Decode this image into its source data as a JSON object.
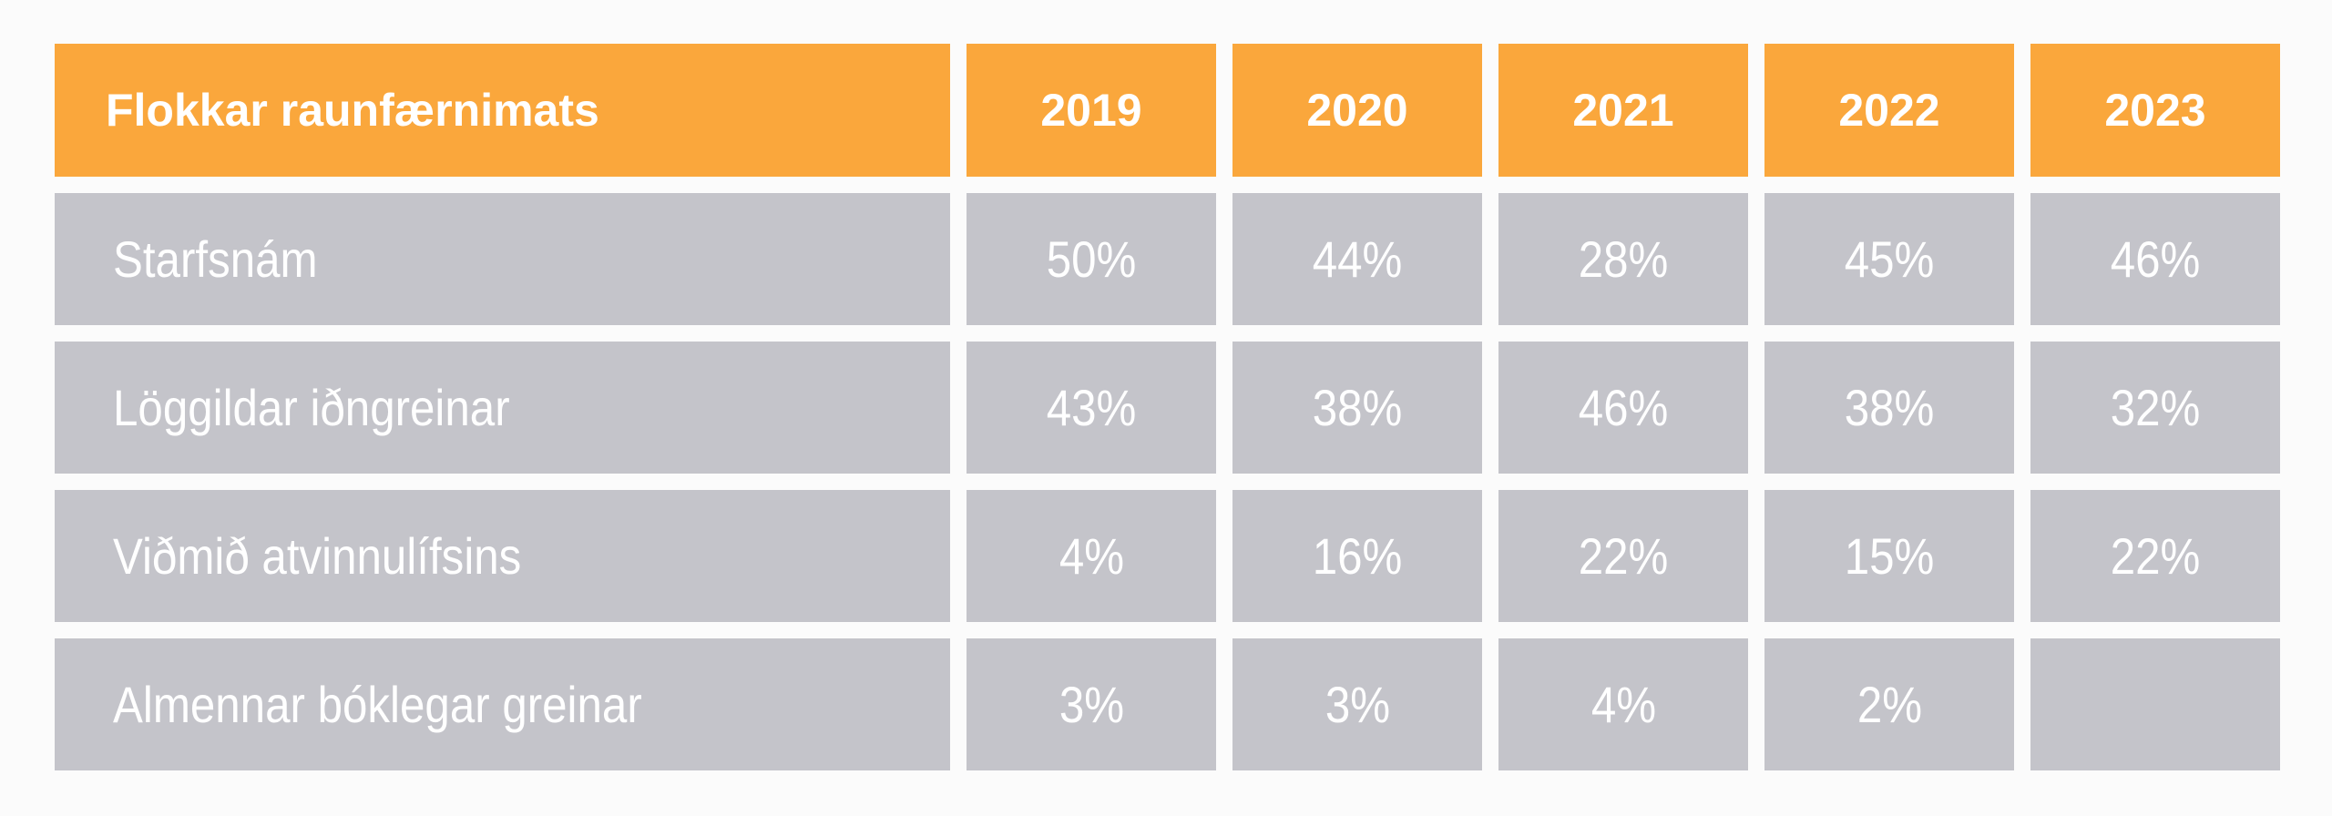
{
  "title": "Flokkar raunfærnimats",
  "colors": {
    "page_bg": "#FBFBFB",
    "header_bg": "#FAA73C",
    "header_text": "#FFFFFF",
    "row_bg": "#C4C4CA",
    "row_text": "#FFFFFF"
  },
  "table": {
    "header": {
      "label": "Flokkar raunfærnimats",
      "years": [
        "2019",
        "2020",
        "2021",
        "2022",
        "2023"
      ]
    },
    "rows": [
      {
        "label": "Starfsnám",
        "values": [
          "50%",
          "44%",
          "28%",
          "45%",
          "46%"
        ]
      },
      {
        "label": "Löggildar iðngreinar",
        "values": [
          "43%",
          "38%",
          "46%",
          "38%",
          "32%"
        ]
      },
      {
        "label": "Viðmið atvinnulífsins",
        "values": [
          "4%",
          "16%",
          "22%",
          "15%",
          "22%"
        ]
      },
      {
        "label": "Almennar bóklegar greinar",
        "values": [
          "3%",
          "3%",
          "4%",
          "2%",
          ""
        ]
      }
    ]
  },
  "chart_data": {
    "type": "table",
    "title": "Flokkar raunfærnimats",
    "columns": [
      "Flokkar raunfærnimats",
      "2019",
      "2020",
      "2021",
      "2022",
      "2023"
    ],
    "categories": [
      "2019",
      "2020",
      "2021",
      "2022",
      "2023"
    ],
    "unit": "%",
    "series": [
      {
        "name": "Starfsnám",
        "values": [
          50,
          44,
          28,
          45,
          46
        ]
      },
      {
        "name": "Löggildar iðngreinar",
        "values": [
          43,
          38,
          46,
          38,
          32
        ]
      },
      {
        "name": "Viðmið atvinnulífsins",
        "values": [
          4,
          16,
          22,
          15,
          22
        ]
      },
      {
        "name": "Almennar bóklegar greinar",
        "values": [
          3,
          3,
          4,
          2,
          null
        ]
      }
    ],
    "rows": [
      [
        "Starfsnám",
        "50%",
        "44%",
        "28%",
        "45%",
        "46%"
      ],
      [
        "Löggildar iðngreinar",
        "43%",
        "38%",
        "46%",
        "38%",
        "32%"
      ],
      [
        "Viðmið atvinnulífsins",
        "4%",
        "16%",
        "22%",
        "15%",
        "22%"
      ],
      [
        "Almennar bóklegar greinar",
        "3%",
        "3%",
        "4%",
        "2%",
        ""
      ]
    ]
  }
}
